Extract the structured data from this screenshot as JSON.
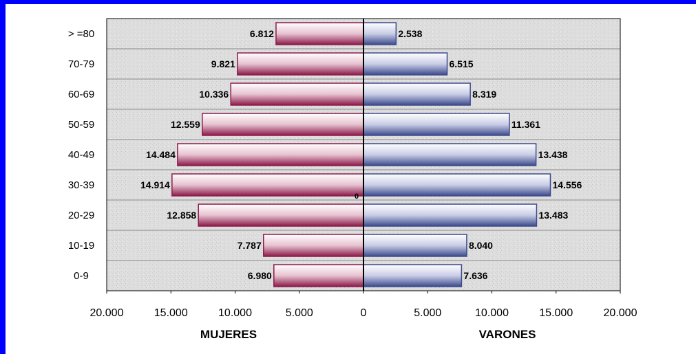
{
  "chart_data": {
    "type": "bar",
    "orientation": "horizontal",
    "categories": [
      "> =80",
      "70-79",
      "60-69",
      "50-59",
      "40-49",
      "30-39",
      "20-29",
      "10-19",
      "0-9"
    ],
    "series": [
      {
        "name": "MUJERES",
        "values": [
          6812,
          9821,
          10336,
          12559,
          14484,
          14914,
          12858,
          7787,
          6980
        ],
        "labels": [
          "6.812",
          "9.821",
          "10.336",
          "12.559",
          "14.484",
          "14.914",
          "12.858",
          "7.787",
          "6.980"
        ]
      },
      {
        "name": "VARONES",
        "values": [
          2538,
          6515,
          8319,
          11361,
          13438,
          14556,
          13483,
          8040,
          7636
        ],
        "labels": [
          "2.538",
          "6.515",
          "8.319",
          "11.361",
          "13.438",
          "14.556",
          "13.483",
          "8.040",
          "7.636"
        ]
      }
    ],
    "x_ticks": [
      "20.000",
      "15.000",
      "10.000",
      "5.000",
      "0",
      "5.000",
      "10.000",
      "15.000",
      "20.000"
    ],
    "xlim": [
      -20000,
      20000
    ],
    "center_annotation": "0",
    "grid": true,
    "colors": {
      "mujeres": "#8b1a4a",
      "varones": "#3c4a8c",
      "frame": "#0000ff",
      "plot_background": "#dcdcdc"
    }
  }
}
